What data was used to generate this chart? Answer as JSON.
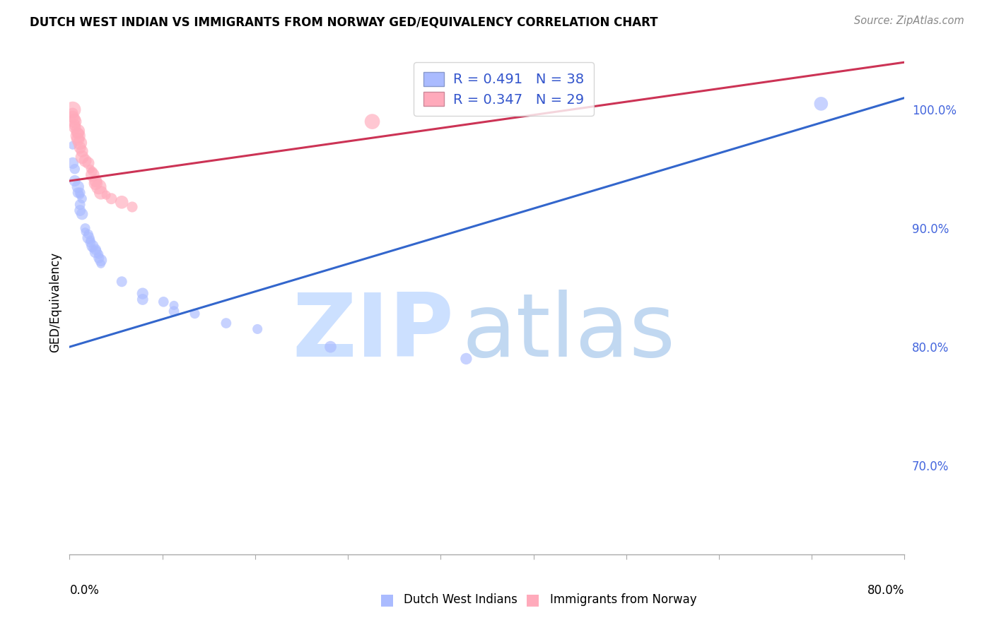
{
  "title": "DUTCH WEST INDIAN VS IMMIGRANTS FROM NORWAY GED/EQUIVALENCY CORRELATION CHART",
  "source": "Source: ZipAtlas.com",
  "ylabel": "GED/Equivalency",
  "legend1_label": "R = 0.491   N = 38",
  "legend2_label": "R = 0.347   N = 29",
  "blue_patch_color": "#aabbff",
  "pink_patch_color": "#ffaabb",
  "blue_dot_color": "#aabbff",
  "pink_dot_color": "#ffaabb",
  "blue_line_color": "#3366cc",
  "pink_line_color": "#cc3355",
  "legend_text_color": "#3355cc",
  "right_tick_color": "#4466dd",
  "grid_color": "#dddddd",
  "watermark_zip_color": "#cce0ff",
  "watermark_atlas_color": "#bbd4f0",
  "blue_dots": [
    [
      0.003,
      0.97
    ],
    [
      0.003,
      0.955
    ],
    [
      0.005,
      0.95
    ],
    [
      0.005,
      0.94
    ],
    [
      0.008,
      0.935
    ],
    [
      0.008,
      0.93
    ],
    [
      0.01,
      0.93
    ],
    [
      0.01,
      0.928
    ],
    [
      0.012,
      0.925
    ],
    [
      0.01,
      0.92
    ],
    [
      0.01,
      0.915
    ],
    [
      0.012,
      0.912
    ],
    [
      0.015,
      0.9
    ],
    [
      0.015,
      0.897
    ],
    [
      0.018,
      0.895
    ],
    [
      0.018,
      0.892
    ],
    [
      0.02,
      0.89
    ],
    [
      0.02,
      0.888
    ],
    [
      0.022,
      0.885
    ],
    [
      0.022,
      0.883
    ],
    [
      0.025,
      0.882
    ],
    [
      0.025,
      0.88
    ],
    [
      0.028,
      0.878
    ],
    [
      0.028,
      0.875
    ],
    [
      0.03,
      0.873
    ],
    [
      0.03,
      0.87
    ],
    [
      0.05,
      0.855
    ],
    [
      0.07,
      0.845
    ],
    [
      0.07,
      0.84
    ],
    [
      0.09,
      0.838
    ],
    [
      0.1,
      0.835
    ],
    [
      0.1,
      0.83
    ],
    [
      0.12,
      0.828
    ],
    [
      0.15,
      0.82
    ],
    [
      0.18,
      0.815
    ],
    [
      0.25,
      0.8
    ],
    [
      0.38,
      0.79
    ],
    [
      0.72,
      1.005
    ]
  ],
  "pink_dots": [
    [
      0.003,
      1.0
    ],
    [
      0.003,
      0.997
    ],
    [
      0.003,
      0.994
    ],
    [
      0.005,
      0.992
    ],
    [
      0.005,
      0.99
    ],
    [
      0.005,
      0.987
    ],
    [
      0.005,
      0.985
    ],
    [
      0.008,
      0.982
    ],
    [
      0.008,
      0.98
    ],
    [
      0.008,
      0.978
    ],
    [
      0.008,
      0.975
    ],
    [
      0.01,
      0.972
    ],
    [
      0.01,
      0.968
    ],
    [
      0.012,
      0.965
    ],
    [
      0.012,
      0.96
    ],
    [
      0.015,
      0.957
    ],
    [
      0.018,
      0.955
    ],
    [
      0.02,
      0.95
    ],
    [
      0.022,
      0.948
    ],
    [
      0.022,
      0.945
    ],
    [
      0.025,
      0.94
    ],
    [
      0.025,
      0.938
    ],
    [
      0.028,
      0.935
    ],
    [
      0.03,
      0.93
    ],
    [
      0.035,
      0.928
    ],
    [
      0.04,
      0.925
    ],
    [
      0.05,
      0.922
    ],
    [
      0.06,
      0.918
    ],
    [
      0.29,
      0.99
    ]
  ],
  "blue_line_x": [
    0.0,
    0.8
  ],
  "blue_line_y": [
    0.8,
    1.01
  ],
  "pink_line_x": [
    0.0,
    0.8
  ],
  "pink_line_y": [
    0.94,
    1.04
  ],
  "xlim": [
    0.0,
    0.8
  ],
  "ylim": [
    0.625,
    1.05
  ],
  "y_tick_positions": [
    0.7,
    0.8,
    0.9,
    1.0
  ],
  "y_tick_labels": [
    "70.0%",
    "80.0%",
    "90.0%",
    "100.0%"
  ],
  "x_tick_count": 10
}
